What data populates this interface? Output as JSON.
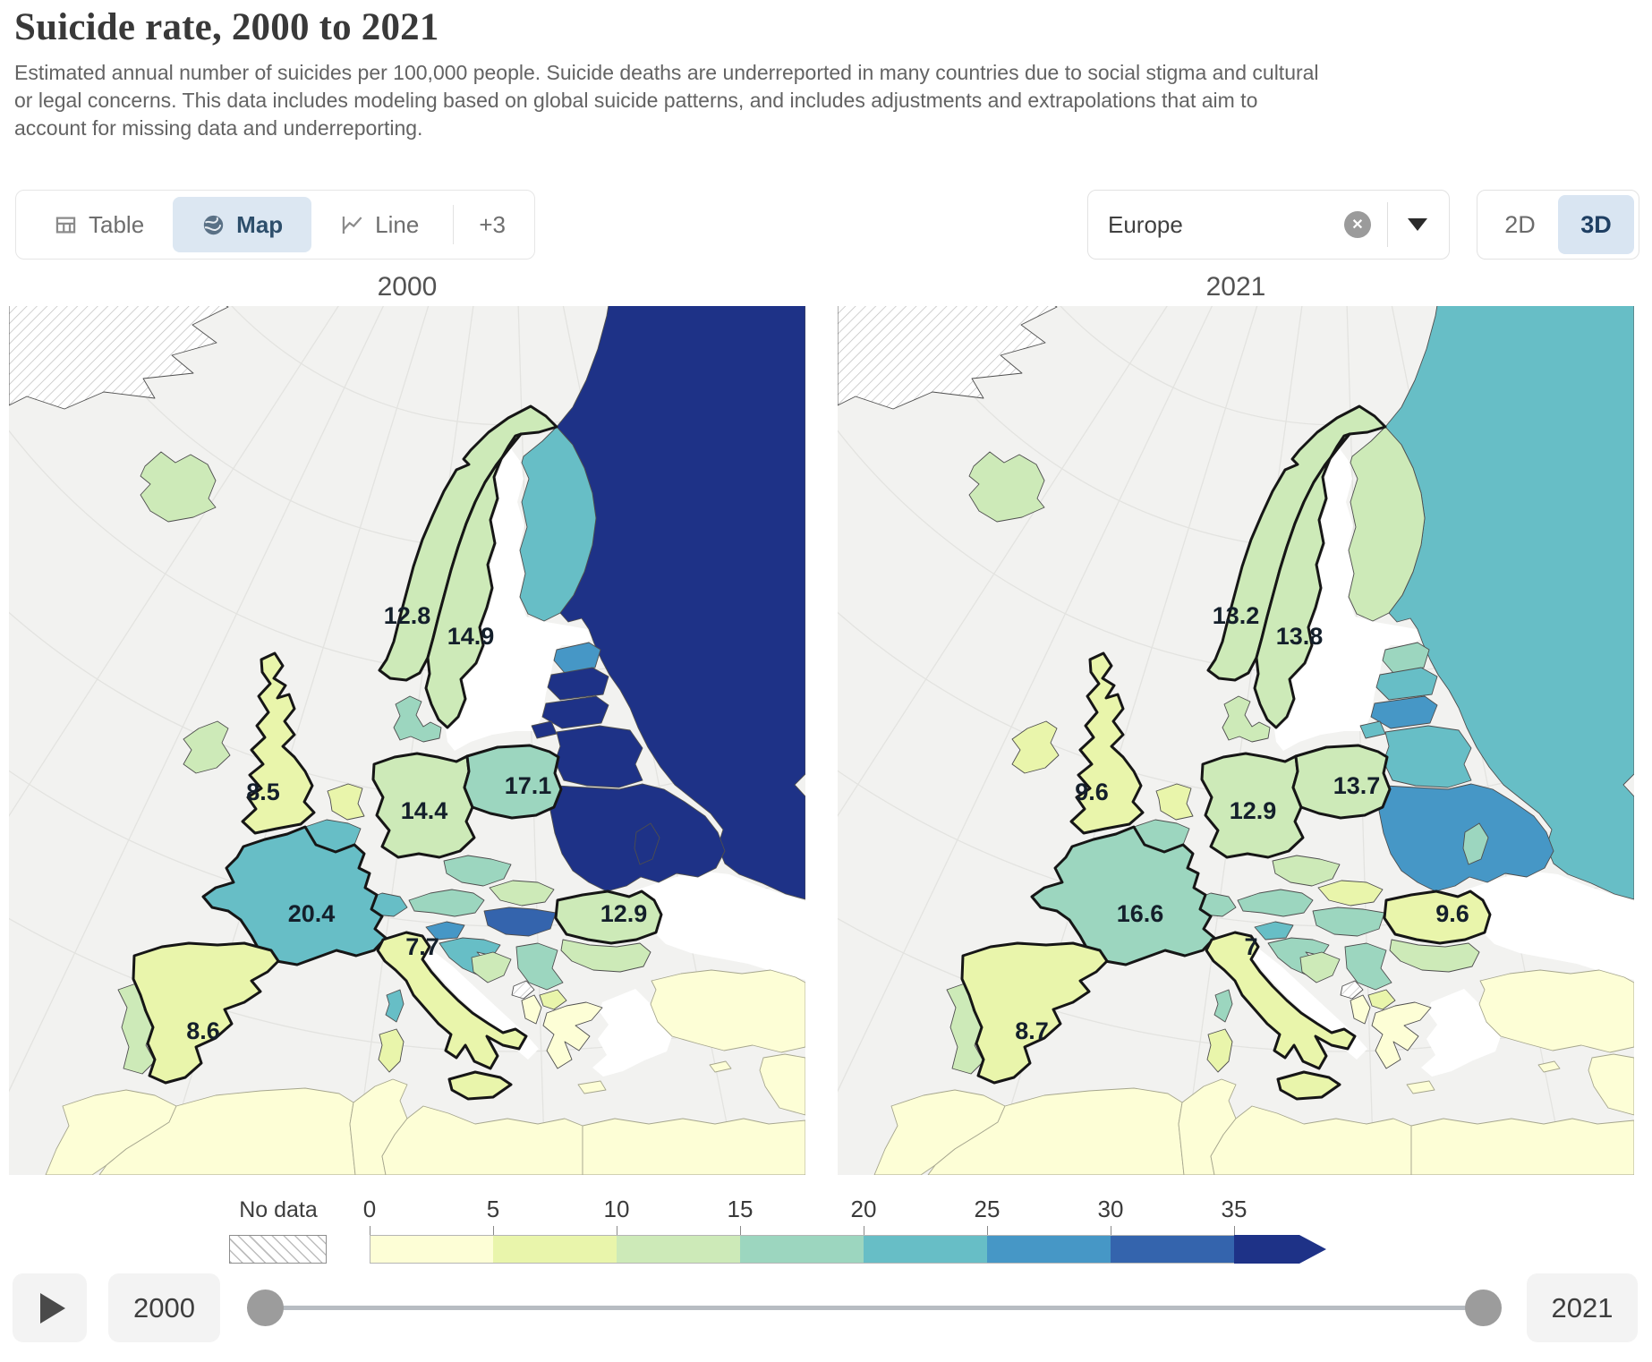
{
  "header": {
    "title": "Suicide rate, 2000 to 2021",
    "subtitle": "Estimated annual number of suicides per 100,000 people. Suicide deaths are underreported in many countries due to social stigma and cultural or legal concerns. This data includes modeling based on global suicide patterns, and includes adjustments and extrapolations that aim to account for missing data and underreporting."
  },
  "tabs": {
    "items": [
      {
        "label": "Table",
        "icon": "table-icon",
        "active": false
      },
      {
        "label": "Map",
        "icon": "globe-icon",
        "active": true
      },
      {
        "label": "Line",
        "icon": "line-chart-icon",
        "active": false
      }
    ],
    "more_label": "+3"
  },
  "entity_selector": {
    "value": "Europe",
    "clear_icon": "x-circle-icon",
    "caret_icon": "caret-down-icon"
  },
  "projection_toggle": {
    "options": [
      "2D",
      "3D"
    ],
    "active": "3D"
  },
  "facets": [
    {
      "year": "2000"
    },
    {
      "year": "2021"
    }
  ],
  "timeline": {
    "start_year": "2000",
    "end_year": "2021",
    "play_icon": "play-icon"
  },
  "chart_data": {
    "type": "heatmap",
    "subtype": "choropleth map pair (faceted by year)",
    "title": "Suicide rate, 2000 to 2021",
    "unit": "estimated annual suicides per 100,000 people",
    "facet_years": [
      "2000",
      "2021"
    ],
    "labeled_values": [
      {
        "id": "norway",
        "country": "Norway",
        "y2000": "12.8",
        "y2021": "13.2"
      },
      {
        "id": "sweden",
        "country": "Sweden",
        "y2000": "14.9",
        "y2021": "13.8"
      },
      {
        "id": "uk",
        "country": "United Kingdom",
        "y2000": "8.5",
        "y2021": "9.6"
      },
      {
        "id": "germany",
        "country": "Germany",
        "y2000": "14.4",
        "y2021": "12.9"
      },
      {
        "id": "poland",
        "country": "Poland",
        "y2000": "17.1",
        "y2021": "13.7"
      },
      {
        "id": "france",
        "country": "France",
        "y2000": "20.4",
        "y2021": "16.6"
      },
      {
        "id": "italy",
        "country": "Italy",
        "y2000": "7.7",
        "y2021": "7"
      },
      {
        "id": "romania",
        "country": "Romania",
        "y2000": "12.9",
        "y2021": "9.6"
      },
      {
        "id": "spain",
        "country": "Spain",
        "y2000": "8.6",
        "y2021": "8.7"
      }
    ],
    "legend": {
      "no_data_label": "No data",
      "tick_labels": [
        "0",
        "5",
        "10",
        "15",
        "20",
        "25",
        "30",
        "35"
      ],
      "bin_colors": [
        "#fdfed6",
        "#e9f5ab",
        "#cdeab8",
        "#9cd6bf",
        "#67bec6",
        "#4697c6",
        "#3464ad",
        "#1e3287"
      ],
      "open_ended": true
    }
  },
  "countries": [
    {
      "id": "greenland",
      "name": "Greenland",
      "fill_2000": "no-data",
      "fill_2021": "no-data"
    },
    {
      "id": "iceland",
      "name": "Iceland",
      "fill_2000": "#cdeab8",
      "fill_2021": "#cdeab8"
    },
    {
      "id": "norway",
      "name": "Norway",
      "fill_2000": "#cdeab8",
      "fill_2021": "#cdeab8"
    },
    {
      "id": "sweden",
      "name": "Sweden",
      "fill_2000": "#cdeab8",
      "fill_2021": "#cdeab8"
    },
    {
      "id": "finland",
      "name": "Finland",
      "fill_2000": "#67bec6",
      "fill_2021": "#cdeab8"
    },
    {
      "id": "denmark",
      "name": "Denmark",
      "fill_2000": "#9cd6bf",
      "fill_2021": "#cdeab8"
    },
    {
      "id": "russia",
      "name": "Russia",
      "fill_2000": "#1e3287",
      "fill_2021": "#67bec6"
    },
    {
      "id": "estonia",
      "name": "Estonia",
      "fill_2000": "#4697c6",
      "fill_2021": "#9cd6bf"
    },
    {
      "id": "latvia",
      "name": "Latvia",
      "fill_2000": "#1e3287",
      "fill_2021": "#67bec6"
    },
    {
      "id": "lithuania",
      "name": "Lithuania",
      "fill_2000": "#1e3287",
      "fill_2021": "#4697c6"
    },
    {
      "id": "kaliningrad",
      "name": "Kaliningrad (Russia)",
      "fill_2000": "#1e3287",
      "fill_2021": "#67bec6"
    },
    {
      "id": "belarus",
      "name": "Belarus",
      "fill_2000": "#1e3287",
      "fill_2021": "#67bec6"
    },
    {
      "id": "ukraine",
      "name": "Ukraine",
      "fill_2000": "#1e3287",
      "fill_2021": "#4697c6"
    },
    {
      "id": "moldova",
      "name": "Moldova",
      "fill_2000": "#1e3287",
      "fill_2021": "#9cd6bf"
    },
    {
      "id": "poland",
      "name": "Poland",
      "fill_2000": "#9cd6bf",
      "fill_2021": "#cdeab8"
    },
    {
      "id": "germany",
      "name": "Germany",
      "fill_2000": "#cdeab8",
      "fill_2021": "#cdeab8"
    },
    {
      "id": "netherlands",
      "name": "Netherlands",
      "fill_2000": "#e9f5ab",
      "fill_2021": "#e9f5ab"
    },
    {
      "id": "belgium",
      "name": "Belgium",
      "fill_2000": "#67bec6",
      "fill_2021": "#9cd6bf"
    },
    {
      "id": "uk",
      "name": "United Kingdom",
      "fill_2000": "#e9f5ab",
      "fill_2021": "#e9f5ab"
    },
    {
      "id": "ireland",
      "name": "Ireland",
      "fill_2000": "#cdeab8",
      "fill_2021": "#e9f5ab"
    },
    {
      "id": "france",
      "name": "France",
      "fill_2000": "#67bec6",
      "fill_2021": "#9cd6bf"
    },
    {
      "id": "switzerland",
      "name": "Switzerland",
      "fill_2000": "#67bec6",
      "fill_2021": "#9cd6bf"
    },
    {
      "id": "austria",
      "name": "Austria",
      "fill_2000": "#9cd6bf",
      "fill_2021": "#9cd6bf"
    },
    {
      "id": "czechia",
      "name": "Czechia",
      "fill_2000": "#9cd6bf",
      "fill_2021": "#cdeab8"
    },
    {
      "id": "slovakia",
      "name": "Slovakia",
      "fill_2000": "#cdeab8",
      "fill_2021": "#e9f5ab"
    },
    {
      "id": "hungary",
      "name": "Hungary",
      "fill_2000": "#3464ad",
      "fill_2021": "#9cd6bf"
    },
    {
      "id": "slovenia",
      "name": "Slovenia",
      "fill_2000": "#4697c6",
      "fill_2021": "#67bec6"
    },
    {
      "id": "croatia",
      "name": "Croatia",
      "fill_2000": "#67bec6",
      "fill_2021": "#9cd6bf"
    },
    {
      "id": "bosnia",
      "name": "Bosnia and Herzegovina",
      "fill_2000": "#cdeab8",
      "fill_2021": "#cdeab8"
    },
    {
      "id": "serbia",
      "name": "Serbia",
      "fill_2000": "#9cd6bf",
      "fill_2021": "#9cd6bf"
    },
    {
      "id": "montenegro",
      "name": "Montenegro",
      "fill_2000": "no-data",
      "fill_2021": "no-data"
    },
    {
      "id": "albania",
      "name": "Albania",
      "fill_2000": "#fdfed6",
      "fill_2021": "#fdfed6"
    },
    {
      "id": "northmacedonia",
      "name": "North Macedonia",
      "fill_2000": "#e9f5ab",
      "fill_2021": "#e9f5ab"
    },
    {
      "id": "romania",
      "name": "Romania",
      "fill_2000": "#cdeab8",
      "fill_2021": "#e9f5ab"
    },
    {
      "id": "bulgaria",
      "name": "Bulgaria",
      "fill_2000": "#cdeab8",
      "fill_2021": "#cdeab8"
    },
    {
      "id": "greece",
      "name": "Greece",
      "fill_2000": "#fdfed6",
      "fill_2021": "#fdfed6"
    },
    {
      "id": "crete",
      "name": "Crete (Greece)",
      "fill_2000": "#fdfed6",
      "fill_2021": "#fdfed6"
    },
    {
      "id": "turkey",
      "name": "Turkey",
      "fill_2000": "#fdfed6",
      "fill_2021": "#fdfed6"
    },
    {
      "id": "cyprus",
      "name": "Cyprus",
      "fill_2000": "#fdfed6",
      "fill_2021": "#fdfed6"
    },
    {
      "id": "mideast",
      "name": "Middle East",
      "fill_2000": "#fdfed6",
      "fill_2021": "#fdfed6"
    },
    {
      "id": "morocco",
      "name": "Morocco",
      "fill_2000": "#fdfed6",
      "fill_2021": "#fdfed6"
    },
    {
      "id": "algeria",
      "name": "Algeria",
      "fill_2000": "#fdfed6",
      "fill_2021": "#fdfed6"
    },
    {
      "id": "tunisia",
      "name": "Tunisia",
      "fill_2000": "#fdfed6",
      "fill_2021": "#fdfed6"
    },
    {
      "id": "libya",
      "name": "Libya",
      "fill_2000": "#fdfed6",
      "fill_2021": "#fdfed6"
    },
    {
      "id": "egypt",
      "name": "Egypt",
      "fill_2000": "#fdfed6",
      "fill_2021": "#fdfed6"
    },
    {
      "id": "portugal",
      "name": "Portugal",
      "fill_2000": "#cdeab8",
      "fill_2021": "#cdeab8"
    },
    {
      "id": "spain",
      "name": "Spain",
      "fill_2000": "#e9f5ab",
      "fill_2021": "#e9f5ab"
    },
    {
      "id": "italy",
      "name": "Italy",
      "fill_2000": "#e9f5ab",
      "fill_2021": "#e9f5ab"
    },
    {
      "id": "sicily",
      "name": "Sicily (Italy)",
      "fill_2000": "#e9f5ab",
      "fill_2021": "#e9f5ab"
    },
    {
      "id": "sardinia",
      "name": "Sardinia (Italy)",
      "fill_2000": "#e9f5ab",
      "fill_2021": "#e9f5ab"
    },
    {
      "id": "corsica",
      "name": "Corsica (France)",
      "fill_2000": "#67bec6",
      "fill_2021": "#9cd6bf"
    }
  ]
}
